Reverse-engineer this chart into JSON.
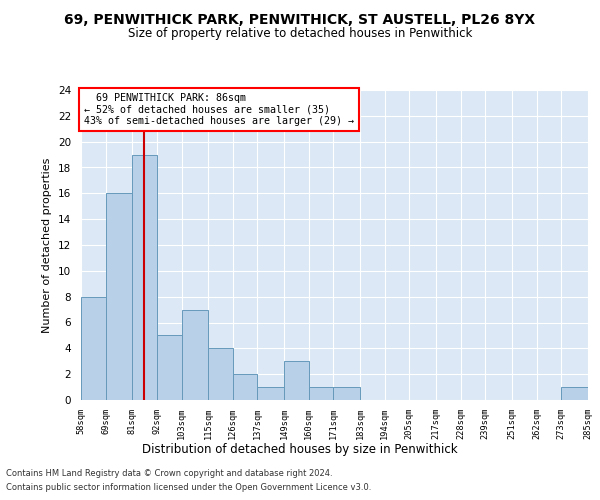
{
  "title_line1": "69, PENWITHICK PARK, PENWITHICK, ST AUSTELL, PL26 8YX",
  "title_line2": "Size of property relative to detached houses in Penwithick",
  "xlabel": "Distribution of detached houses by size in Penwithick",
  "ylabel": "Number of detached properties",
  "footnote1": "Contains HM Land Registry data © Crown copyright and database right 2024.",
  "footnote2": "Contains public sector information licensed under the Open Government Licence v3.0.",
  "annotation_line1": "  69 PENWITHICK PARK: 86sqm",
  "annotation_line2": "← 52% of detached houses are smaller (35)",
  "annotation_line3": "43% of semi-detached houses are larger (29) →",
  "bar_color": "#b8d0e8",
  "bar_edge_color": "#6699bb",
  "red_line_color": "#cc0000",
  "property_size": 86,
  "bin_edges": [
    58,
    69,
    81,
    92,
    103,
    115,
    126,
    137,
    149,
    160,
    171,
    183,
    194,
    205,
    217,
    228,
    239,
    251,
    262,
    273,
    285
  ],
  "bar_heights": [
    8,
    16,
    19,
    5,
    7,
    4,
    2,
    1,
    3,
    1,
    1,
    0,
    0,
    0,
    0,
    0,
    0,
    0,
    0,
    1
  ],
  "ylim": [
    0,
    24
  ],
  "yticks": [
    0,
    2,
    4,
    6,
    8,
    10,
    12,
    14,
    16,
    18,
    20,
    22,
    24
  ],
  "axes_background": "#dce8f5",
  "fig_background": "#ffffff"
}
